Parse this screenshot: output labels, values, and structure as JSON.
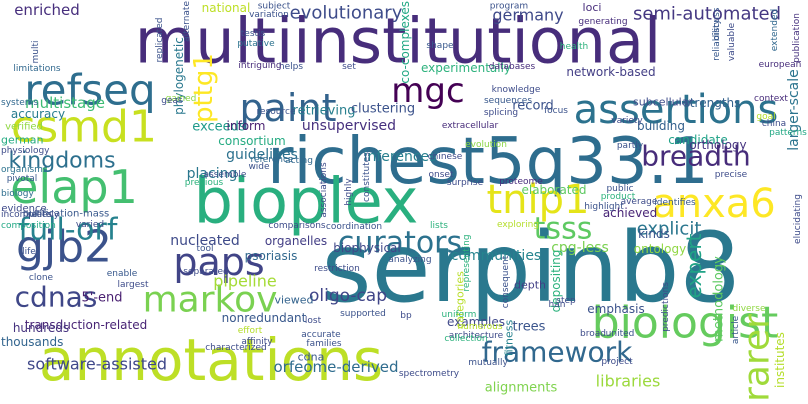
{
  "word_cloud": {
    "words": [
      {
        "text": "multiinstitutional",
        "color": "#472d7b"
      },
      {
        "text": "serpinb8",
        "color": "#2a788e"
      },
      {
        "text": "richest5q33.1",
        "color": "#2e6d8e"
      },
      {
        "text": "annotations",
        "color": "#bddf26"
      },
      {
        "text": "bioplex",
        "color": "#29af7f"
      },
      {
        "text": "assertions",
        "color": "#2c728e"
      },
      {
        "text": "paint",
        "color": "#33638d"
      },
      {
        "text": "refseq",
        "color": "#2e6e8e"
      },
      {
        "text": "mgc",
        "color": "#440154"
      },
      {
        "text": "csmd1",
        "color": "#c8e020"
      },
      {
        "text": "elap1",
        "color": "#44bf70"
      },
      {
        "text": "tnip1",
        "color": "#e5e419"
      },
      {
        "text": "anxa6",
        "color": "#fde725"
      },
      {
        "text": "gjb2",
        "color": "#3b528b"
      },
      {
        "text": "paps",
        "color": "#414487"
      },
      {
        "text": "markov",
        "color": "#7ad151"
      },
      {
        "text": "curators",
        "color": "#2c728e"
      },
      {
        "text": "full-orf",
        "color": "#26828e"
      },
      {
        "text": "biologist",
        "color": "#65cb5e"
      },
      {
        "text": "framework",
        "color": "#31688e"
      },
      {
        "text": "rarer",
        "color": "#9fda3a"
      },
      {
        "text": "breadth",
        "color": "#472c7a"
      },
      {
        "text": "tsss",
        "color": "#5ec962"
      },
      {
        "text": "kingdoms",
        "color": "#2d708e"
      },
      {
        "text": "pttg1",
        "color": "#fde725"
      },
      {
        "text": "cdnas",
        "color": "#3f4788"
      },
      {
        "text": "semi-automated",
        "color": "#453882"
      },
      {
        "text": "evolutionary",
        "color": "#3e4c8a"
      },
      {
        "text": "explicit",
        "color": "#2a768e"
      },
      {
        "text": "expert",
        "color": "#20a386"
      },
      {
        "text": "oligo-cap",
        "color": "#404588"
      },
      {
        "text": "pipeline",
        "color": "#a5db36"
      },
      {
        "text": "libraries",
        "color": "#9bd93c"
      },
      {
        "text": "enriched",
        "color": "#472f7d"
      },
      {
        "text": "germany",
        "color": "#3e4989"
      },
      {
        "text": "unsupervised",
        "color": "#46307e"
      },
      {
        "text": "multistage",
        "color": "#3dbc74"
      },
      {
        "text": "guidelines",
        "color": "#2c718e"
      },
      {
        "text": "inferences",
        "color": "#277f8e"
      },
      {
        "text": "communities",
        "color": "#25848e"
      },
      {
        "text": "nucleated",
        "color": "#3e4a89"
      },
      {
        "text": "software-assisted",
        "color": "#3f4889"
      },
      {
        "text": "orfeome-derived",
        "color": "#2f6c8e"
      },
      {
        "text": "5'-end",
        "color": "#481f70"
      },
      {
        "text": "cpg-less",
        "color": "#7ad151"
      },
      {
        "text": "placing",
        "color": "#2a778e"
      },
      {
        "text": "retrieving",
        "color": "#277f8e"
      },
      {
        "text": "clustering",
        "color": "#3b528b"
      },
      {
        "text": "exceeds",
        "color": "#1f9a8a"
      },
      {
        "text": "strengths",
        "color": "#34618d"
      },
      {
        "text": "building",
        "color": "#34608d"
      },
      {
        "text": "candidate",
        "color": "#1fa287"
      },
      {
        "text": "record",
        "color": "#3b528b"
      },
      {
        "text": "trees",
        "color": "#3a548c"
      },
      {
        "text": "alignments",
        "color": "#7fd34e"
      },
      {
        "text": "larger-scale",
        "color": "#2b748e"
      },
      {
        "text": "transduction-related",
        "color": "#482475"
      },
      {
        "text": "network-based",
        "color": "#433e85"
      },
      {
        "text": "consortium",
        "color": "#25ab82"
      },
      {
        "text": "achieved",
        "color": "#482576"
      },
      {
        "text": "kinds",
        "color": "#3a548c"
      },
      {
        "text": "orthology",
        "color": "#46337f"
      },
      {
        "text": "emphasis",
        "color": "#3b528b"
      },
      {
        "text": "methodology",
        "color": "#5ec962"
      },
      {
        "text": "experimentally",
        "color": "#2db27d"
      },
      {
        "text": "accuracy",
        "color": "#287c8e"
      },
      {
        "text": "organelles",
        "color": "#433e85"
      },
      {
        "text": "biophysical",
        "color": "#3f4788"
      },
      {
        "text": "nonredundant",
        "color": "#38588c"
      },
      {
        "text": "depositing",
        "color": "#2db27d"
      },
      {
        "text": "ontology",
        "color": "#90d743"
      },
      {
        "text": "psoriasis",
        "color": "#31688e"
      },
      {
        "text": "inform",
        "color": "#481f70"
      },
      {
        "text": "thousands",
        "color": "#32648e"
      },
      {
        "text": "hundreds",
        "color": "#46337f"
      },
      {
        "text": "viewed",
        "color": "#33638d"
      },
      {
        "text": "examples",
        "color": "#3f4889"
      },
      {
        "text": "cdna",
        "color": "#38588c"
      },
      {
        "text": "elaborated",
        "color": "#5ec962"
      },
      {
        "text": "german",
        "color": "#25ab82"
      },
      {
        "text": "phylogenetic",
        "color": "#2a788e"
      },
      {
        "text": "co-complexes",
        "color": "#22a884"
      },
      {
        "text": "national",
        "color": "#bddf26"
      },
      {
        "text": "institutes",
        "color": "#b5de2b"
      },
      {
        "text": "depth",
        "color": "#424086"
      },
      {
        "text": "fitness",
        "color": "#26828e"
      },
      {
        "text": "categories",
        "color": "#b8de29"
      },
      {
        "text": "loci",
        "color": "#472d7b"
      },
      {
        "text": "subcellular",
        "color": "#3e4c8a"
      },
      {
        "text": "verified",
        "color": "#90d743"
      },
      {
        "text": "evidence",
        "color": "#3e4989"
      },
      {
        "text": "purification-mass",
        "color": "#38588c"
      },
      {
        "text": "multi",
        "color": "#3b528b"
      },
      {
        "text": "limitations",
        "color": "#31688e"
      },
      {
        "text": "systems",
        "color": "#31688e"
      },
      {
        "text": "physiology",
        "color": "#3e4c8a"
      },
      {
        "text": "organisms",
        "color": "#2c728e"
      },
      {
        "text": "pivotal",
        "color": "#38588c"
      },
      {
        "text": "biology",
        "color": "#2e6e8e"
      },
      {
        "text": "composition",
        "color": "#22a884"
      },
      {
        "text": "gained",
        "color": "#8bd646"
      },
      {
        "text": "publication",
        "color": "#46327e"
      },
      {
        "text": "precise",
        "color": "#3e4c8a"
      },
      {
        "text": "china",
        "color": "#3e4c8a"
      },
      {
        "text": "patterns",
        "color": "#22a884"
      },
      {
        "text": "context",
        "color": "#472c7a"
      },
      {
        "text": "goal",
        "color": "#b5de2b"
      },
      {
        "text": "extended",
        "color": "#31688e"
      },
      {
        "text": "european",
        "color": "#472d7b"
      },
      {
        "text": "reliability",
        "color": "#38588c"
      },
      {
        "text": "generating",
        "color": "#472d7b"
      },
      {
        "text": "variation",
        "color": "#3b528b"
      },
      {
        "text": "subject",
        "color": "#3b528b"
      },
      {
        "text": "program",
        "color": "#3b528b"
      },
      {
        "text": "health",
        "color": "#2db27d"
      },
      {
        "text": "discuss",
        "color": "#38588c"
      },
      {
        "text": "valuable",
        "color": "#3e4c8a"
      },
      {
        "text": "helps",
        "color": "#3b528b"
      },
      {
        "text": "shape",
        "color": "#38588c"
      },
      {
        "text": "testis",
        "color": "#3b528b"
      },
      {
        "text": "putative",
        "color": "#2c728e"
      },
      {
        "text": "alternate",
        "color": "#3b528b"
      },
      {
        "text": "replicated",
        "color": "#3b528b"
      },
      {
        "text": "intriguing",
        "color": "#472c7a"
      },
      {
        "text": "set",
        "color": "#3e4c8a"
      },
      {
        "text": "databases",
        "color": "#472d7b"
      },
      {
        "text": "knowledge",
        "color": "#3e4c8a"
      },
      {
        "text": "resource",
        "color": "#3b528b"
      },
      {
        "text": "sequences",
        "color": "#38588c"
      },
      {
        "text": "splicing",
        "color": "#3e4c8a"
      },
      {
        "text": "variety",
        "color": "#3e4c8a"
      },
      {
        "text": "focus",
        "color": "#3b528b"
      },
      {
        "text": "extracellular",
        "color": "#472c7a"
      },
      {
        "text": "evolution",
        "color": "#8bd646"
      },
      {
        "text": "partly",
        "color": "#3b528b"
      },
      {
        "text": "acting",
        "color": "#31688e"
      },
      {
        "text": "chinese",
        "color": "#3e4c8a"
      },
      {
        "text": "reference",
        "color": "#31688e"
      },
      {
        "text": "wide",
        "color": "#3b528b"
      },
      {
        "text": "assemble",
        "color": "#3e4c8a"
      },
      {
        "text": "previous",
        "color": "#2db27d"
      },
      {
        "text": "associations",
        "color": "#3e4c8a"
      },
      {
        "text": "highly",
        "color": "#3e4c8a"
      },
      {
        "text": "constitutes",
        "color": "#3b528b"
      },
      {
        "text": "onset",
        "color": "#3e4c8a"
      },
      {
        "text": "surprise",
        "color": "#3e4c8a"
      },
      {
        "text": "proteome",
        "color": "#472d7b"
      },
      {
        "text": "public",
        "color": "#3b528b"
      },
      {
        "text": "product",
        "color": "#2db27d"
      },
      {
        "text": "average",
        "color": "#3e4c8a"
      },
      {
        "text": "identifies",
        "color": "#38588c"
      },
      {
        "text": "elucidating",
        "color": "#3e4c8a"
      },
      {
        "text": "exploring",
        "color": "#b5de2b"
      },
      {
        "text": "coordination",
        "color": "#3b528b"
      },
      {
        "text": "comparisons",
        "color": "#3e4c8a"
      },
      {
        "text": "lists",
        "color": "#2db27d"
      },
      {
        "text": "restriction",
        "color": "#3e4c8a"
      },
      {
        "text": "analyzing",
        "color": "#3b528b"
      },
      {
        "text": "representing",
        "color": "#2db27d"
      },
      {
        "text": "consequent",
        "color": "#3b528b"
      },
      {
        "text": "step",
        "color": "#3e4c8a"
      },
      {
        "text": "highlight",
        "color": "#3b528b"
      },
      {
        "text": "han",
        "color": "#3e4c8a"
      },
      {
        "text": "predictions",
        "color": "#3e4c8a"
      },
      {
        "text": "diverse",
        "color": "#90d743"
      },
      {
        "text": "article",
        "color": "#38588c"
      },
      {
        "text": "incompletely",
        "color": "#3e4c8a"
      },
      {
        "text": "relies",
        "color": "#3b528b"
      },
      {
        "text": "varied",
        "color": "#3e4c8a"
      },
      {
        "text": "tool",
        "color": "#3b528b"
      },
      {
        "text": "separated",
        "color": "#3e4c8a"
      },
      {
        "text": "clone",
        "color": "#3b528b"
      },
      {
        "text": "enable",
        "color": "#38588c"
      },
      {
        "text": "largest",
        "color": "#3e4c8a"
      },
      {
        "text": "life",
        "color": "#3b528b"
      },
      {
        "text": "effort",
        "color": "#b5de2b"
      },
      {
        "text": "affinity",
        "color": "#3e4c8a"
      },
      {
        "text": "families",
        "color": "#3b528b"
      },
      {
        "text": "characterized",
        "color": "#3e4c8a"
      },
      {
        "text": "accurate",
        "color": "#3b528b"
      },
      {
        "text": "lost",
        "color": "#3e4c8a"
      },
      {
        "text": "supported",
        "color": "#3b528b"
      },
      {
        "text": "bp",
        "color": "#3e4c8a"
      },
      {
        "text": "uniform",
        "color": "#2db27d"
      },
      {
        "text": "broad",
        "color": "#3e4c8a"
      },
      {
        "text": "united",
        "color": "#3b528b"
      },
      {
        "text": "architecture",
        "color": "#3e4c8a"
      },
      {
        "text": "collection",
        "color": "#2db27d"
      },
      {
        "text": "numerous",
        "color": "#b5de2b"
      },
      {
        "text": "spectrometry",
        "color": "#3e4c8a"
      },
      {
        "text": "mutually",
        "color": "#3b528b"
      },
      {
        "text": "project",
        "color": "#3e4c8a"
      },
      {
        "text": "geas",
        "color": "#3e4c8a"
      }
    ]
  }
}
